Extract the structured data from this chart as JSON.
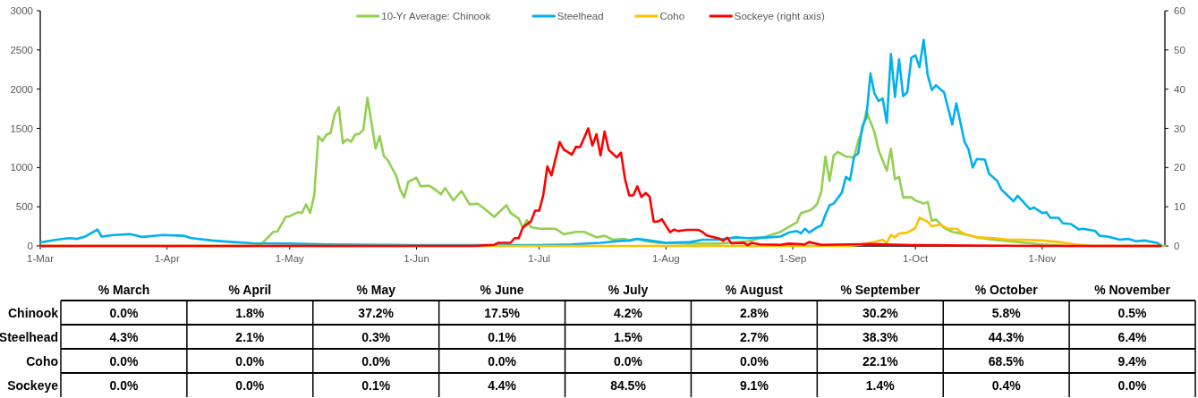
{
  "chart_data": {
    "type": "line",
    "legend": "top",
    "marker": "none",
    "line_style": "solid",
    "grid": false,
    "xlim": [
      "--03-01",
      "--12-01"
    ],
    "xticks": [
      {
        "value": "--03-01",
        "label": "1-Mar"
      },
      {
        "value": "--04-01",
        "label": "1-Apr"
      },
      {
        "value": "--05-01",
        "label": "1-May"
      },
      {
        "value": "--06-01",
        "label": "1-Jun"
      },
      {
        "value": "--07-01",
        "label": "1-Jul"
      },
      {
        "value": "--08-01",
        "label": "1-Aug"
      },
      {
        "value": "--09-01",
        "label": "1-Sep"
      },
      {
        "value": "--10-01",
        "label": "1-Oct"
      },
      {
        "value": "--11-01",
        "label": "1-Nov"
      }
    ],
    "ylim": [
      0,
      3000
    ],
    "yticks": [
      0,
      500,
      1000,
      1500,
      2000,
      2500,
      3000
    ],
    "y2lim": [
      0,
      60
    ],
    "y2ticks": [
      0,
      10,
      20,
      30,
      40,
      50,
      60
    ],
    "series": [
      {
        "name": "10-Yr Average: Chinook",
        "color": "#92d050",
        "x": [
          "--03-01",
          "--04-22",
          "--04-24",
          "--04-27",
          "--04-28",
          "--04-30",
          "--05-01",
          "--05-03",
          "--05-04",
          "--05-05",
          "--05-06",
          "--05-07",
          "--05-08",
          "--05-09",
          "--05-10",
          "--05-11",
          "--05-12",
          "--05-13",
          "--05-14",
          "--05-15",
          "--05-16",
          "--05-17",
          "--05-18",
          "--05-19",
          "--05-20",
          "--05-22",
          "--05-23",
          "--05-24",
          "--05-25",
          "--05-27",
          "--05-28",
          "--05-29",
          "--05-30",
          "--06-01",
          "--06-02",
          "--06-04",
          "--06-05",
          "--06-07",
          "--06-08",
          "--06-10",
          "--06-12",
          "--06-14",
          "--06-16",
          "--06-18",
          "--06-20",
          "--06-23",
          "--06-24",
          "--06-26",
          "--06-27",
          "--06-28",
          "--06-29",
          "--07-01",
          "--07-05",
          "--07-07",
          "--07-10",
          "--07-12",
          "--07-15",
          "--07-17",
          "--07-19",
          "--07-22",
          "--07-23",
          "--07-25",
          "--07-27",
          "--07-30",
          "--08-07",
          "--08-14",
          "--08-21",
          "--08-25",
          "--08-29",
          "--08-31",
          "--09-02",
          "--09-03",
          "--09-05",
          "--09-06",
          "--09-07",
          "--09-08",
          "--09-09",
          "--09-10",
          "--09-11",
          "--09-12",
          "--09-14",
          "--09-16",
          "--09-17",
          "--09-18",
          "--09-19",
          "--09-21",
          "--09-22",
          "--09-24",
          "--09-25",
          "--09-26",
          "--09-27",
          "--09-28",
          "--09-30",
          "--10-01",
          "--10-03",
          "--10-04",
          "--10-05",
          "--10-06",
          "--10-08",
          "--10-10",
          "--10-13",
          "--10-16",
          "--10-20",
          "--10-26",
          "--11-01",
          "--11-07",
          "--12-01"
        ],
        "values": [
          0,
          0,
          20,
          180,
          185,
          370,
          380,
          430,
          420,
          530,
          420,
          650,
          1400,
          1340,
          1420,
          1440,
          1680,
          1770,
          1310,
          1360,
          1330,
          1420,
          1430,
          1480,
          1890,
          1240,
          1400,
          1150,
          1090,
          900,
          720,
          620,
          820,
          870,
          760,
          770,
          740,
          660,
          740,
          580,
          700,
          530,
          540,
          460,
          370,
          520,
          420,
          350,
          230,
          330,
          240,
          220,
          220,
          150,
          180,
          180,
          110,
          130,
          80,
          90,
          70,
          90,
          60,
          40,
          30,
          30,
          60,
          110,
          180,
          240,
          300,
          420,
          450,
          480,
          540,
          700,
          1140,
          830,
          1150,
          1200,
          1140,
          1130,
          1340,
          1470,
          1720,
          1450,
          1220,
          960,
          1240,
          850,
          880,
          620,
          620,
          580,
          540,
          560,
          320,
          340,
          230,
          180,
          150,
          110,
          80,
          50,
          20,
          0,
          0
        ]
      },
      {
        "name": "Steelhead",
        "color": "#00b0f0",
        "x": [
          "--03-01",
          "--03-05",
          "--03-08",
          "--03-10",
          "--03-12",
          "--03-15",
          "--03-16",
          "--03-19",
          "--03-21",
          "--03-23",
          "--03-26",
          "--03-31",
          "--04-05",
          "--04-07",
          "--04-12",
          "--04-17",
          "--04-22",
          "--05-01",
          "--05-10",
          "--06-01",
          "--06-20",
          "--07-01",
          "--07-09",
          "--07-16",
          "--07-20",
          "--07-23",
          "--07-25",
          "--07-28",
          "--08-01",
          "--08-07",
          "--08-10",
          "--08-14",
          "--08-18",
          "--08-21",
          "--08-26",
          "--08-29",
          "--08-31",
          "--09-02",
          "--09-03",
          "--09-04",
          "--09-05",
          "--09-07",
          "--09-08",
          "--09-09",
          "--09-10",
          "--09-11",
          "--09-13",
          "--09-14",
          "--09-15",
          "--09-16",
          "--09-17",
          "--09-18",
          "--09-19",
          "--09-20",
          "--09-21",
          "--09-22",
          "--09-23",
          "--09-24",
          "--09-25",
          "--09-26",
          "--09-27",
          "--09-28",
          "--09-29",
          "--09-30",
          "--10-01",
          "--10-02",
          "--10-03",
          "--10-04",
          "--10-05",
          "--10-06",
          "--10-08",
          "--10-10",
          "--10-11",
          "--10-13",
          "--10-14",
          "--10-15",
          "--10-16",
          "--10-18",
          "--10-19",
          "--10-21",
          "--10-22",
          "--10-25",
          "--10-26",
          "--10-29",
          "--10-30",
          "--11-01",
          "--11-02",
          "--11-03",
          "--11-05",
          "--11-06",
          "--11-08",
          "--11-10",
          "--11-11",
          "--11-14",
          "--11-15",
          "--11-17",
          "--11-20",
          "--11-22",
          "--11-24",
          "--11-26",
          "--11-29",
          "--11-30"
        ],
        "values": [
          45,
          80,
          100,
          90,
          120,
          210,
          120,
          140,
          145,
          150,
          115,
          140,
          130,
          100,
          70,
          50,
          35,
          30,
          20,
          10,
          10,
          10,
          20,
          40,
          60,
          70,
          90,
          70,
          40,
          50,
          80,
          80,
          110,
          100,
          110,
          120,
          170,
          190,
          160,
          220,
          170,
          240,
          260,
          400,
          520,
          540,
          680,
          880,
          840,
          1140,
          1180,
          1520,
          1640,
          2200,
          1940,
          1850,
          1880,
          1570,
          2450,
          1900,
          2380,
          1910,
          1960,
          2400,
          2430,
          2280,
          2630,
          2180,
          1990,
          2050,
          1960,
          1550,
          1820,
          1330,
          1230,
          1000,
          1110,
          1100,
          920,
          830,
          720,
          570,
          640,
          470,
          490,
          420,
          430,
          360,
          360,
          290,
          280,
          210,
          220,
          190,
          130,
          120,
          80,
          90,
          60,
          70,
          40,
          10
        ]
      },
      {
        "name": "Coho",
        "color": "#ffc000",
        "x": [
          "--03-01",
          "--09-15",
          "--09-18",
          "--09-21",
          "--09-23",
          "--09-24",
          "--09-25",
          "--09-26",
          "--09-27",
          "--09-29",
          "--10-01",
          "--10-02",
          "--10-04",
          "--10-05",
          "--10-07",
          "--10-09",
          "--10-11",
          "--10-13",
          "--10-16",
          "--10-20",
          "--10-24",
          "--10-27",
          "--11-01",
          "--11-05",
          "--11-09",
          "--11-13",
          "--11-30"
        ],
        "values": [
          0,
          0,
          20,
          50,
          80,
          40,
          140,
          110,
          160,
          170,
          230,
          360,
          310,
          250,
          270,
          220,
          220,
          150,
          110,
          100,
          80,
          80,
          70,
          50,
          20,
          0,
          0
        ]
      },
      {
        "name": "Sockeye (right axis)",
        "color": "#ff0000",
        "axis": "y2",
        "x": [
          "--03-01",
          "--06-15",
          "--06-20",
          "--06-21",
          "--06-24",
          "--06-25",
          "--06-26",
          "--06-27",
          "--06-29",
          "--06-30",
          "--07-01",
          "--07-02",
          "--07-03",
          "--07-04",
          "--07-06",
          "--07-07",
          "--07-09",
          "--07-10",
          "--07-11",
          "--07-13",
          "--07-14",
          "--07-15",
          "--07-16",
          "--07-17",
          "--07-18",
          "--07-20",
          "--07-21",
          "--07-22",
          "--07-23",
          "--07-24",
          "--07-25",
          "--07-26",
          "--07-27",
          "--07-28",
          "--07-29",
          "--07-30",
          "--07-31",
          "--08-02",
          "--08-03",
          "--08-04",
          "--08-06",
          "--08-09",
          "--08-10",
          "--08-11",
          "--08-14",
          "--08-15",
          "--08-16",
          "--08-17",
          "--08-20",
          "--08-21",
          "--08-22",
          "--08-24",
          "--08-29",
          "--08-31",
          "--09-04",
          "--09-05",
          "--09-08",
          "--09-15",
          "--09-20",
          "--10-01",
          "--10-15",
          "--11-01",
          "--11-30"
        ],
        "values": [
          0,
          0,
          0.3,
          0.8,
          0.8,
          2,
          2,
          4.7,
          6.3,
          9,
          9,
          13,
          20.3,
          18,
          26.5,
          24.6,
          23.3,
          25.3,
          25.2,
          30,
          25.6,
          28.5,
          23.1,
          29.2,
          24.5,
          22.6,
          23.8,
          17,
          12.9,
          12.9,
          15.2,
          12.5,
          13.5,
          12.6,
          6.2,
          6.2,
          6.8,
          3.5,
          4.2,
          3.8,
          4.1,
          4.1,
          3.5,
          2.7,
          1.9,
          1.3,
          2.1,
          0.7,
          0.8,
          0.2,
          0.8,
          0.4,
          0.3,
          0.6,
          0.4,
          1,
          0.3,
          0.4,
          0.5,
          0.2,
          0.1,
          0,
          0
        ]
      }
    ],
    "annotations": [
      "% March",
      "% April",
      "% May",
      "% June",
      "% July",
      "% August",
      "% September",
      "% October",
      "% November",
      "Chinook",
      "0.0%",
      "1.8%",
      "37.2%",
      "17.5%",
      "4.2%",
      "2.8%",
      "30.2%",
      "5.8%",
      "0.5%",
      "Steelhead",
      "4.3%",
      "2.1%",
      "0.3%",
      "0.1%",
      "1.5%",
      "2.7%",
      "38.3%",
      "44.3%",
      "6.4%",
      "Coho",
      "0.0%",
      "0.0%",
      "0.0%",
      "0.0%",
      "0.0%",
      "0.0%",
      "22.1%",
      "68.5%",
      "9.4%",
      "Sockeye",
      "0.0%",
      "0.0%",
      "0.1%",
      "4.4%",
      "84.5%",
      "9.1%",
      "1.4%",
      "0.4%",
      "0.0%"
    ]
  }
}
